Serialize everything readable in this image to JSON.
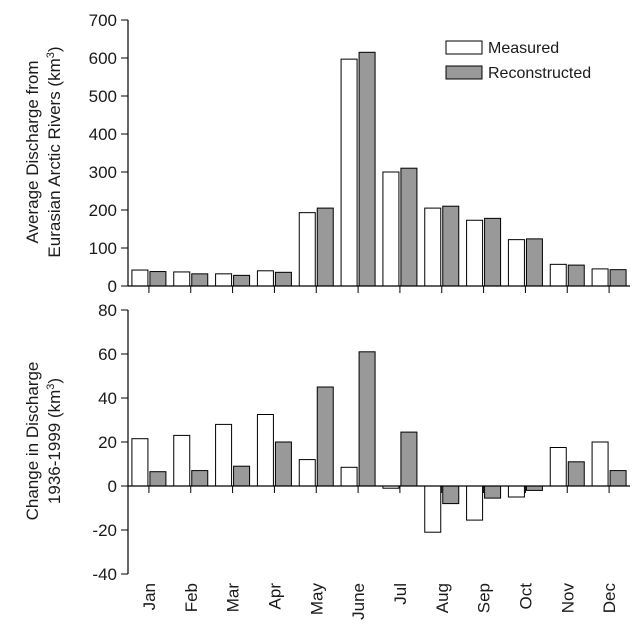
{
  "chart_data": [
    {
      "type": "bar",
      "ylabel_line1": "Average Discharge from",
      "ylabel_line2": "Eurasian Arctic Rivers (km",
      "ylabel_sup": "3",
      "ylabel_end": ")",
      "ylim": [
        0,
        700
      ],
      "yticks": [
        0,
        100,
        200,
        300,
        400,
        500,
        600,
        700
      ],
      "categories": [
        "Jan",
        "Feb",
        "Mar",
        "Apr",
        "May",
        "June",
        "Jul",
        "Aug",
        "Sep",
        "Oct",
        "Nov",
        "Dec"
      ],
      "series": [
        {
          "name": "Measured",
          "color": "#ffffff",
          "values": [
            42,
            37,
            32,
            40,
            193,
            597,
            300,
            205,
            173,
            122,
            57,
            45
          ]
        },
        {
          "name": "Reconstructed",
          "color": "#999999",
          "values": [
            38,
            32,
            28,
            36,
            205,
            615,
            310,
            210,
            178,
            124,
            55,
            43
          ]
        }
      ],
      "legend": "top-right",
      "grid": false
    },
    {
      "type": "bar",
      "ylabel_line1": "Change in Discharge",
      "ylabel_line2": "1936-1999 (km",
      "ylabel_sup": "3",
      "ylabel_end": ")",
      "ylim": [
        -40,
        80
      ],
      "yticks": [
        -40,
        -20,
        0,
        20,
        40,
        60,
        80
      ],
      "categories": [
        "Jan",
        "Feb",
        "Mar",
        "Apr",
        "May",
        "June",
        "Jul",
        "Aug",
        "Sep",
        "Oct",
        "Nov",
        "Dec"
      ],
      "series": [
        {
          "name": "Measured",
          "color": "#ffffff",
          "values": [
            21.5,
            23,
            28,
            32.5,
            12,
            8.5,
            -1,
            -21,
            -15.5,
            -5,
            17.5,
            20
          ]
        },
        {
          "name": "Reconstructed",
          "color": "#999999",
          "values": [
            6.5,
            7,
            9,
            20,
            45,
            61,
            24.5,
            -8,
            -5.5,
            -2,
            11,
            7
          ]
        }
      ],
      "grid": false
    }
  ]
}
